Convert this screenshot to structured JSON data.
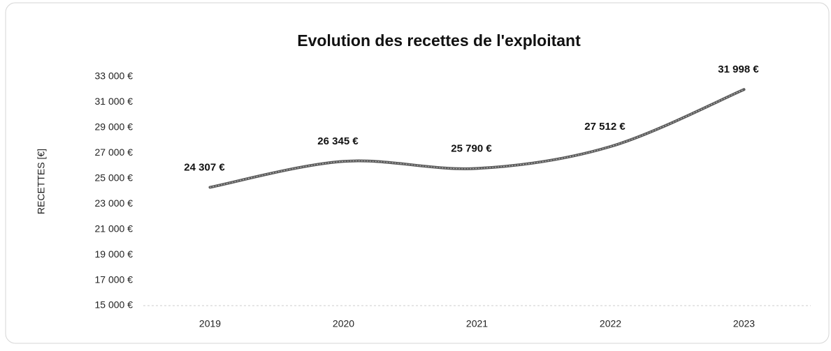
{
  "chart_data": {
    "type": "line",
    "title": "Evolution des recettes de l'exploitant",
    "y_label": "RECETTES [€]",
    "categories": [
      "2019",
      "2020",
      "2021",
      "2022",
      "2023"
    ],
    "values": [
      24307,
      26345,
      25790,
      27512,
      31998
    ],
    "value_labels": [
      "24 307 €",
      "26 345 €",
      "25 790 €",
      "27 512 €",
      "31 998 €"
    ],
    "color": "#5a5a5a",
    "ylim": [
      15000,
      33000
    ],
    "yticks": [
      {
        "value": 15000,
        "label": "15 000 €"
      },
      {
        "value": 17000,
        "label": "17 000 €"
      },
      {
        "value": 19000,
        "label": "19 000 €"
      },
      {
        "value": 21000,
        "label": "21 000 €"
      },
      {
        "value": 23000,
        "label": "23 000 €"
      },
      {
        "value": 25000,
        "label": "25 000 €"
      },
      {
        "value": 27000,
        "label": "27 000 €"
      },
      {
        "value": 29000,
        "label": "29 000 €"
      },
      {
        "value": 31000,
        "label": "31 000 €"
      },
      {
        "value": 33000,
        "label": "33 000 €"
      }
    ],
    "grid": false,
    "smooth": true
  }
}
